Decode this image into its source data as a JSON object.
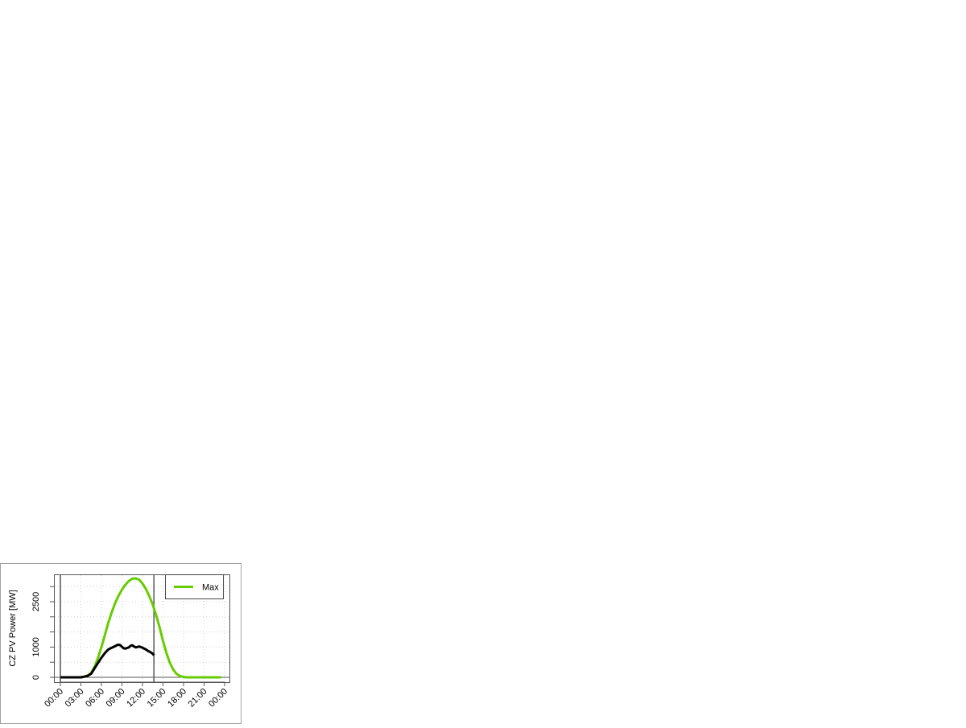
{
  "chart_data": {
    "type": "line",
    "title": "",
    "xlabel": "",
    "ylabel": "CZ PV Power [MW]",
    "x_ticks": [
      "00:00",
      "03:00",
      "06:00",
      "09:00",
      "12:00",
      "15:00",
      "18:00",
      "21:00",
      "00:00"
    ],
    "x_range_hours": [
      0,
      24
    ],
    "y_ticks": [
      0,
      500,
      1000,
      1500,
      2000,
      2500,
      3000
    ],
    "y_tick_labels": [
      "0",
      "1000",
      "2500"
    ],
    "y_range": [
      -150,
      3400
    ],
    "grid": true,
    "legend": {
      "placement": "top-right",
      "entries": [
        "Max"
      ]
    },
    "vertical_lines_hours": [
      0,
      13.67
    ],
    "series": [
      {
        "name": "Max",
        "color": "#66cc00",
        "x_hours": [
          0,
          1,
          2,
          3,
          3.5,
          4,
          4.5,
          5,
          5.5,
          6,
          6.5,
          7,
          7.5,
          8,
          8.5,
          9,
          9.5,
          10,
          10.5,
          11,
          11.5,
          12,
          12.5,
          13,
          13.5,
          14,
          14.5,
          15,
          15.5,
          16,
          16.5,
          17,
          17.5,
          18,
          18.5,
          19,
          20,
          21,
          22,
          23,
          23.5
        ],
        "values": [
          0,
          0,
          0,
          0,
          20,
          60,
          150,
          350,
          650,
          1000,
          1400,
          1800,
          2150,
          2450,
          2700,
          2900,
          3060,
          3180,
          3260,
          3270,
          3230,
          3100,
          2920,
          2680,
          2400,
          2050,
          1650,
          1200,
          800,
          480,
          250,
          110,
          40,
          10,
          0,
          0,
          0,
          0,
          0,
          0,
          0
        ]
      },
      {
        "color": "#000000",
        "x_hours": [
          0,
          1,
          2,
          3,
          3.5,
          4,
          4.5,
          5,
          5.5,
          6,
          6.5,
          7,
          7.5,
          8,
          8.25,
          8.5,
          8.75,
          9,
          9.25,
          9.5,
          9.75,
          10,
          10.25,
          10.5,
          10.75,
          11,
          11.25,
          11.5,
          11.75,
          12,
          12.25,
          12.5,
          12.75,
          13,
          13.25,
          13.5,
          13.67
        ],
        "values": [
          0,
          0,
          0,
          0,
          20,
          50,
          120,
          300,
          480,
          650,
          800,
          920,
          980,
          1030,
          1060,
          1080,
          1060,
          1010,
          960,
          950,
          970,
          990,
          1040,
          1060,
          1020,
          990,
          1000,
          1020,
          1000,
          980,
          950,
          920,
          880,
          850,
          820,
          780,
          730
        ]
      }
    ]
  }
}
